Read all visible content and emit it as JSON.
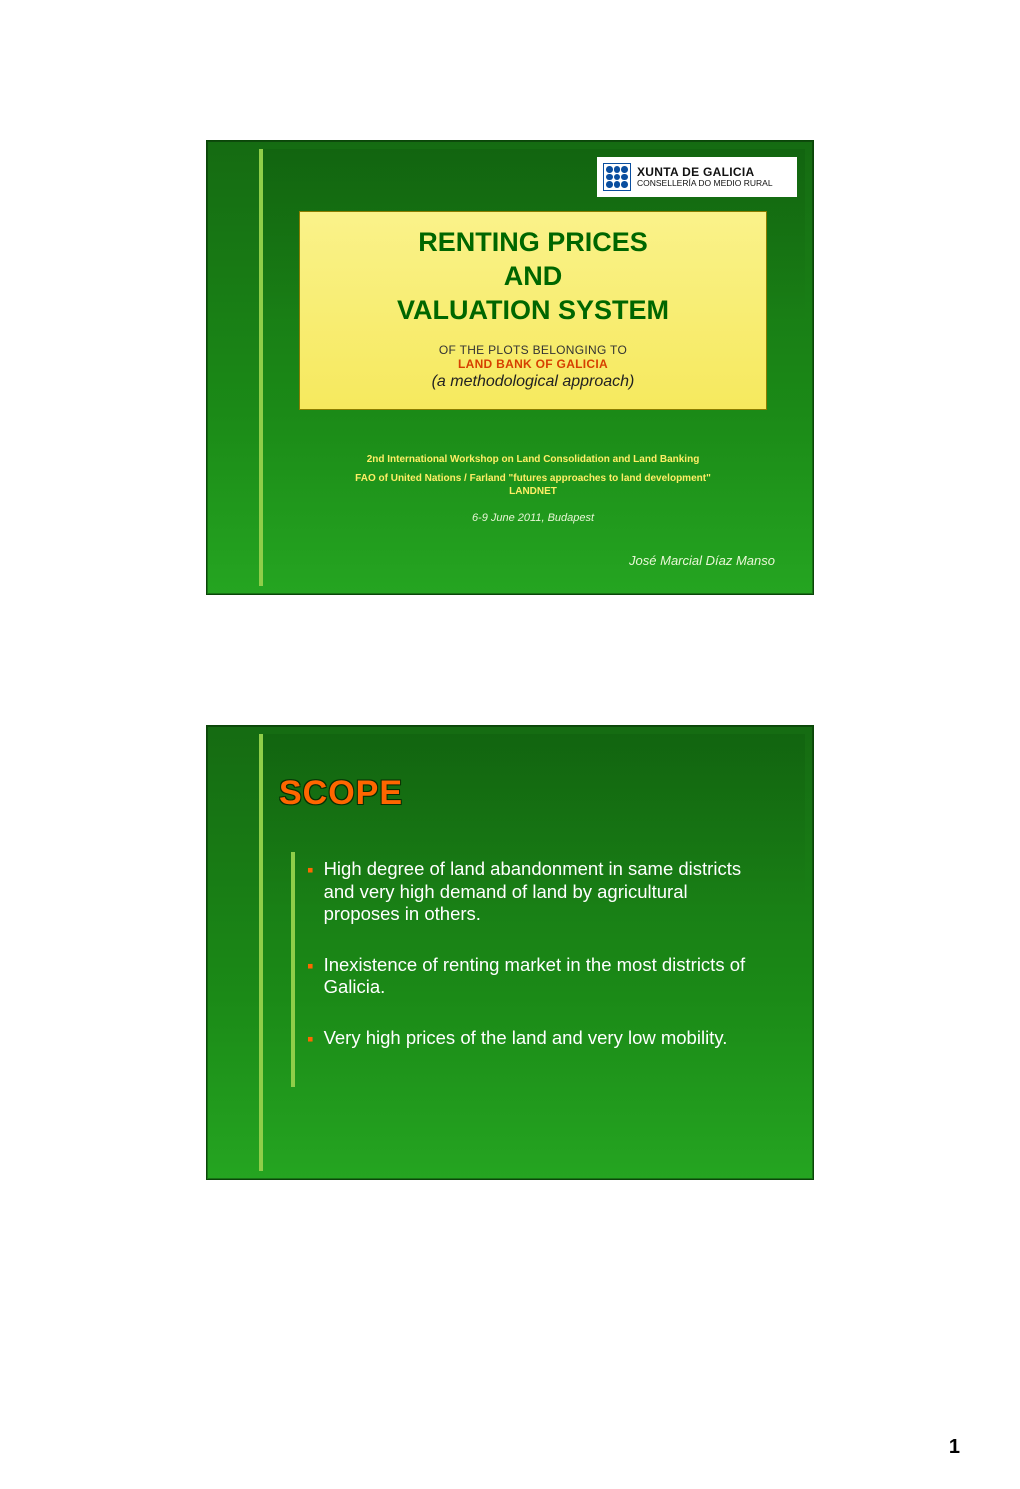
{
  "page": {
    "number": "1"
  },
  "colors": {
    "slide_bg_top": "#156b12",
    "slide_bg_bottom": "#25a521",
    "accent_bar": "#8fce49",
    "title_orange": "#ff6600",
    "title_green": "#006600",
    "yellow_panel": "#f9ee7b",
    "meta_yellow": "#ffee66",
    "body_text": "#ffffff"
  },
  "slide1": {
    "header_org": "XUNTA DE GALICIA",
    "header_dept": "CONSELLERÍA DO MEDIO RURAL",
    "title_line1": "RENTING PRICES",
    "title_line2": "AND",
    "title_line3": "VALUATION SYSTEM",
    "sub1": "OF THE PLOTS BELONGING TO",
    "sub2": "LAND BANK OF GALICIA",
    "sub2_color": "#d63f00",
    "sub3": "(a methodological approach)",
    "meta1": "2nd International Workshop on Land Consolidation and Land Banking",
    "meta2": "FAO of United Nations / Farland \"futures approaches to land development\"",
    "meta3": "LANDNET",
    "date": "6-9 June 2011, Budapest",
    "author": "José Marcial Díaz Manso"
  },
  "slide2": {
    "title": "SCOPE",
    "bullets": [
      "High degree of land abandonment in same districts and very high demand of land by agricultural  proposes in others.",
      "Inexistence of  renting market in the most districts of Galicia.",
      "Very high prices of the land and very low mobility."
    ]
  }
}
